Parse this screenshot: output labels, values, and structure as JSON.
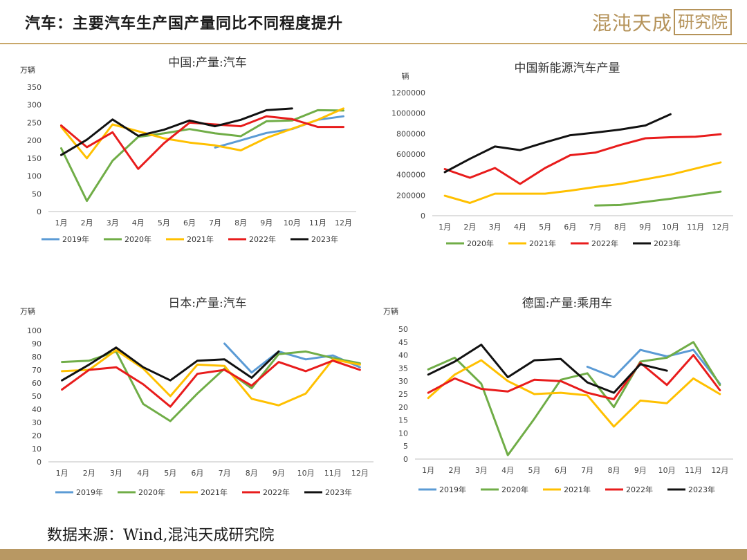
{
  "header": {
    "title": "汽车：主要汽车生产国产量同比不同程度提升",
    "brand_text": "混沌天成",
    "brand_box": "研究院"
  },
  "footer": {
    "source": "数据来源：Wind,混沌天成研究院"
  },
  "colors": {
    "2019年": "#5b9bd5",
    "2020年": "#70ad47",
    "2021年": "#ffc000",
    "2022年": "#e81c1c",
    "2023年": "#111111",
    "rule": "#c9a86a",
    "bar": "#b89863"
  },
  "chart_data": [
    {
      "type": "line",
      "title": "中国:产量:汽车",
      "unit": "万辆",
      "categories": [
        "1月",
        "2月",
        "3月",
        "4月",
        "5月",
        "6月",
        "7月",
        "8月",
        "9月",
        "10月",
        "11月",
        "12月"
      ],
      "yticks": [
        "0",
        "50",
        "100",
        "150",
        "200",
        "250",
        "300",
        "350"
      ],
      "ylim": [
        0,
        350
      ],
      "grid": false,
      "legend": "bottom",
      "series": [
        {
          "name": "2019年",
          "values": [
            null,
            null,
            null,
            null,
            null,
            null,
            180,
            200,
            221,
            232,
            258,
            268
          ]
        },
        {
          "name": "2020年",
          "values": [
            178,
            30,
            143,
            210,
            220,
            232,
            220,
            212,
            254,
            256,
            285,
            284
          ]
        },
        {
          "name": "2021年",
          "values": [
            238,
            150,
            245,
            226,
            206,
            194,
            186,
            172,
            207,
            233,
            258,
            290
          ]
        },
        {
          "name": "2022年",
          "values": [
            242,
            181,
            223,
            120,
            192,
            250,
            245,
            240,
            268,
            260,
            238,
            238
          ]
        },
        {
          "name": "2023年",
          "values": [
            159,
            202,
            259,
            213,
            230,
            256,
            240,
            258,
            285,
            290,
            null,
            null
          ]
        }
      ]
    },
    {
      "type": "line",
      "title": "中国新能源汽车产量",
      "unit": "辆",
      "categories": [
        "1月",
        "2月",
        "3月",
        "4月",
        "5月",
        "6月",
        "7月",
        "8月",
        "9月",
        "10月",
        "11月",
        "12月"
      ],
      "yticks": [
        "0",
        "200000",
        "400000",
        "600000",
        "800000",
        "1000000",
        "1200000"
      ],
      "ylim": [
        0,
        1200000
      ],
      "grid": false,
      "legend": "bottom",
      "series": [
        {
          "name": "2020年",
          "values": [
            null,
            null,
            null,
            null,
            null,
            null,
            100000,
            105000,
            135000,
            165000,
            200000,
            235000
          ]
        },
        {
          "name": "2021年",
          "values": [
            195000,
            125000,
            215000,
            215000,
            215000,
            245000,
            280000,
            310000,
            355000,
            400000,
            460000,
            520000
          ]
        },
        {
          "name": "2022年",
          "values": [
            455000,
            370000,
            465000,
            310000,
            465000,
            590000,
            615000,
            690000,
            755000,
            765000,
            770000,
            795000
          ]
        },
        {
          "name": "2023年",
          "values": [
            425000,
            555000,
            675000,
            640000,
            715000,
            785000,
            810000,
            840000,
            880000,
            990000,
            null,
            null
          ]
        }
      ]
    },
    {
      "type": "line",
      "title": "日本:产量:汽车",
      "unit": "万辆",
      "categories": [
        "1月",
        "2月",
        "3月",
        "4月",
        "5月",
        "6月",
        "7月",
        "8月",
        "9月",
        "10月",
        "11月",
        "12月"
      ],
      "yticks": [
        "0",
        "10",
        "20",
        "30",
        "40",
        "50",
        "60",
        "70",
        "80",
        "90",
        "100"
      ],
      "ylim": [
        0,
        100
      ],
      "grid": false,
      "legend": "bottom",
      "series": [
        {
          "name": "2019年",
          "values": [
            null,
            null,
            null,
            null,
            null,
            null,
            90,
            68,
            84,
            78,
            81,
            72
          ]
        },
        {
          "name": "2020年",
          "values": [
            76,
            77,
            84,
            44,
            31,
            52,
            71,
            56,
            82,
            84,
            79,
            75
          ]
        },
        {
          "name": "2021年",
          "values": [
            69,
            70,
            85,
            71,
            50,
            74,
            73,
            48,
            43,
            52,
            78,
            74
          ]
        },
        {
          "name": "2022年",
          "values": [
            55,
            70,
            72,
            59,
            42,
            67,
            70,
            58,
            76,
            69,
            77,
            70
          ]
        },
        {
          "name": "2023年",
          "values": [
            62,
            74,
            87,
            72,
            62,
            77,
            78,
            64,
            84,
            null,
            null,
            null
          ]
        }
      ]
    },
    {
      "type": "line",
      "title": "德国:产量:乘用车",
      "unit": "万辆",
      "categories": [
        "1月",
        "2月",
        "3月",
        "4月",
        "5月",
        "6月",
        "7月",
        "8月",
        "9月",
        "10月",
        "11月",
        "12月"
      ],
      "yticks": [
        "0",
        "5",
        "10",
        "15",
        "20",
        "25",
        "30",
        "35",
        "40",
        "45",
        "50"
      ],
      "ylim": [
        0,
        50
      ],
      "grid": false,
      "legend": "bottom",
      "series": [
        {
          "name": "2019年",
          "values": [
            null,
            null,
            null,
            null,
            null,
            null,
            35.5,
            31.5,
            42,
            39.5,
            42,
            29
          ]
        },
        {
          "name": "2020年",
          "values": [
            34.5,
            39,
            29,
            1.5,
            15.5,
            30.5,
            33,
            20,
            37.5,
            39,
            45,
            28.5
          ]
        },
        {
          "name": "2021年",
          "values": [
            23.5,
            32.5,
            38,
            30,
            25,
            25.5,
            24.5,
            12.5,
            22.5,
            21.5,
            31,
            25
          ]
        },
        {
          "name": "2022年",
          "values": [
            25.5,
            31,
            27,
            26,
            30.5,
            30,
            25.5,
            23,
            37,
            28.5,
            40,
            26.5
          ]
        },
        {
          "name": "2023年",
          "values": [
            32.5,
            37.5,
            44,
            31.5,
            38,
            38.5,
            29.5,
            25.5,
            36.5,
            34,
            null,
            null
          ]
        }
      ]
    }
  ]
}
